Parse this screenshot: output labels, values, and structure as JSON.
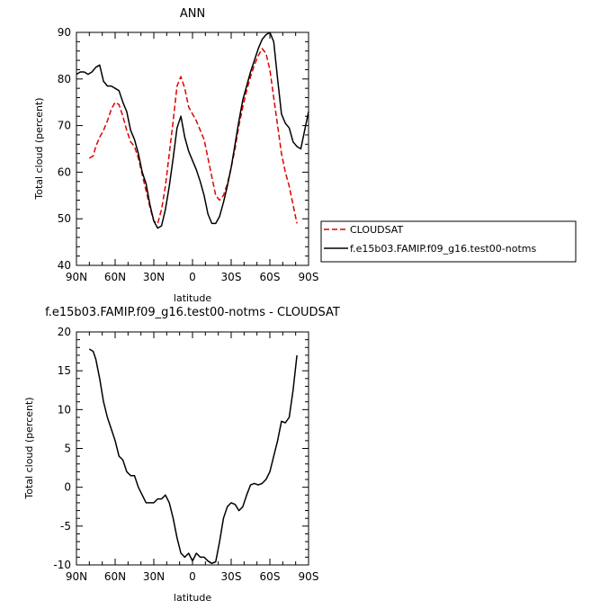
{
  "chart_data": [
    {
      "type": "line",
      "title": "ANN",
      "xlabel": "latitude",
      "ylabel": "Total cloud (percent)",
      "xlim": [
        90,
        -90
      ],
      "ylim": [
        40,
        90
      ],
      "xticks": [
        90,
        60,
        30,
        0,
        -30,
        -60,
        -90
      ],
      "xticklabels": [
        "90N",
        "60N",
        "30N",
        "0",
        "30S",
        "60S",
        "90S"
      ],
      "yticks": [
        40,
        50,
        60,
        70,
        80,
        90
      ],
      "legend_position": "right",
      "series": [
        {
          "name": "CLOUDSAT",
          "color": "#e00000",
          "dash": "dashed",
          "x": [
            80,
            77,
            75,
            72,
            69,
            66,
            63,
            60,
            57,
            54,
            51,
            48,
            45,
            42,
            39,
            36,
            33,
            30,
            27,
            24,
            21,
            18,
            15,
            12,
            9,
            6,
            3,
            0,
            -3,
            -6,
            -9,
            -12,
            -15,
            -18,
            -21,
            -24,
            -27,
            -30,
            -33,
            -36,
            -39,
            -42,
            -45,
            -48,
            -51,
            -54,
            -57,
            -60,
            -63,
            -66,
            -69,
            -72,
            -75,
            -78,
            -81
          ],
          "values": [
            63,
            63.5,
            65.5,
            67.5,
            69,
            71,
            73.5,
            75,
            74.5,
            72,
            69,
            66.5,
            65.5,
            63,
            59.5,
            56,
            52.5,
            49.5,
            49,
            52,
            57,
            64,
            71,
            78.5,
            80.5,
            78,
            74,
            72.5,
            71,
            69,
            67,
            63,
            59,
            55,
            54,
            55,
            57.5,
            61,
            65,
            70,
            74,
            77.5,
            80.5,
            83,
            85,
            86.5,
            85.5,
            82,
            76,
            70,
            64,
            60,
            57,
            53,
            49
          ]
        },
        {
          "name": "f.e15b03.FAMIP.f09_g16.test00-notms",
          "color": "#000000",
          "dash": "solid",
          "x": [
            90,
            87,
            84,
            81,
            78,
            75,
            72,
            69,
            66,
            63,
            60,
            57,
            54,
            51,
            48,
            45,
            42,
            39,
            36,
            33,
            30,
            27,
            24,
            21,
            18,
            15,
            12,
            9,
            6,
            3,
            0,
            -3,
            -6,
            -9,
            -12,
            -15,
            -18,
            -21,
            -24,
            -27,
            -30,
            -33,
            -36,
            -39,
            -42,
            -45,
            -48,
            -51,
            -54,
            -57,
            -60,
            -63,
            -66,
            -69,
            -72,
            -75,
            -78,
            -81,
            -84,
            -87,
            -90
          ],
          "values": [
            81,
            81.5,
            81.5,
            81,
            81.5,
            82.5,
            83,
            79.5,
            78.5,
            78.5,
            78,
            77.5,
            75,
            73,
            69,
            67,
            64,
            60,
            57.5,
            53,
            49.5,
            48,
            48.5,
            52,
            57,
            63,
            69.5,
            72,
            67.5,
            64.5,
            62.5,
            60.5,
            58,
            55,
            51,
            49,
            49,
            50.5,
            53.5,
            57,
            61,
            66,
            71,
            75.5,
            78.5,
            81.5,
            84,
            86.5,
            88.5,
            89.5,
            90,
            88,
            80,
            72.5,
            70.5,
            69.5,
            66.5,
            65.5,
            65,
            69,
            73
          ]
        }
      ]
    },
    {
      "type": "line",
      "title": "f.e15b03.FAMIP.f09_g16.test00-notms - CLOUDSAT",
      "xlabel": "latitude",
      "ylabel": "Total cloud (percent)",
      "xlim": [
        90,
        -90
      ],
      "ylim": [
        -10,
        20
      ],
      "xticks": [
        90,
        60,
        30,
        0,
        -30,
        -60,
        -90
      ],
      "xticklabels": [
        "90N",
        "60N",
        "30N",
        "0",
        "30S",
        "60S",
        "90S"
      ],
      "yticks": [
        -10,
        -5,
        0,
        5,
        10,
        15,
        20
      ],
      "series": [
        {
          "color": "#000000",
          "dash": "solid",
          "x": [
            80,
            77,
            75,
            72,
            69,
            66,
            63,
            60,
            57,
            54,
            51,
            48,
            45,
            42,
            39,
            36,
            33,
            30,
            27,
            24,
            21,
            18,
            15,
            12,
            9,
            6,
            3,
            0,
            -3,
            -6,
            -9,
            -12,
            -15,
            -18,
            -21,
            -24,
            -27,
            -30,
            -33,
            -36,
            -39,
            -42,
            -45,
            -48,
            -51,
            -54,
            -57,
            -60,
            -63,
            -66,
            -69,
            -72,
            -75,
            -78,
            -81
          ],
          "values": [
            17.8,
            17.5,
            16.5,
            14,
            11,
            9,
            7.5,
            6,
            4,
            3.5,
            2,
            1.5,
            1.5,
            0,
            -1,
            -2,
            -2,
            -2,
            -1.5,
            -1.5,
            -1,
            -2,
            -4,
            -6.5,
            -8.5,
            -9,
            -8.5,
            -9.5,
            -8.5,
            -9,
            -9,
            -9.5,
            -9.8,
            -9.6,
            -7,
            -4,
            -2.5,
            -2,
            -2.2,
            -3,
            -2.5,
            -1,
            0.3,
            0.5,
            0.3,
            0.5,
            1,
            2,
            4,
            6,
            8.5,
            8.3,
            9,
            12.5,
            17
          ]
        }
      ]
    }
  ]
}
